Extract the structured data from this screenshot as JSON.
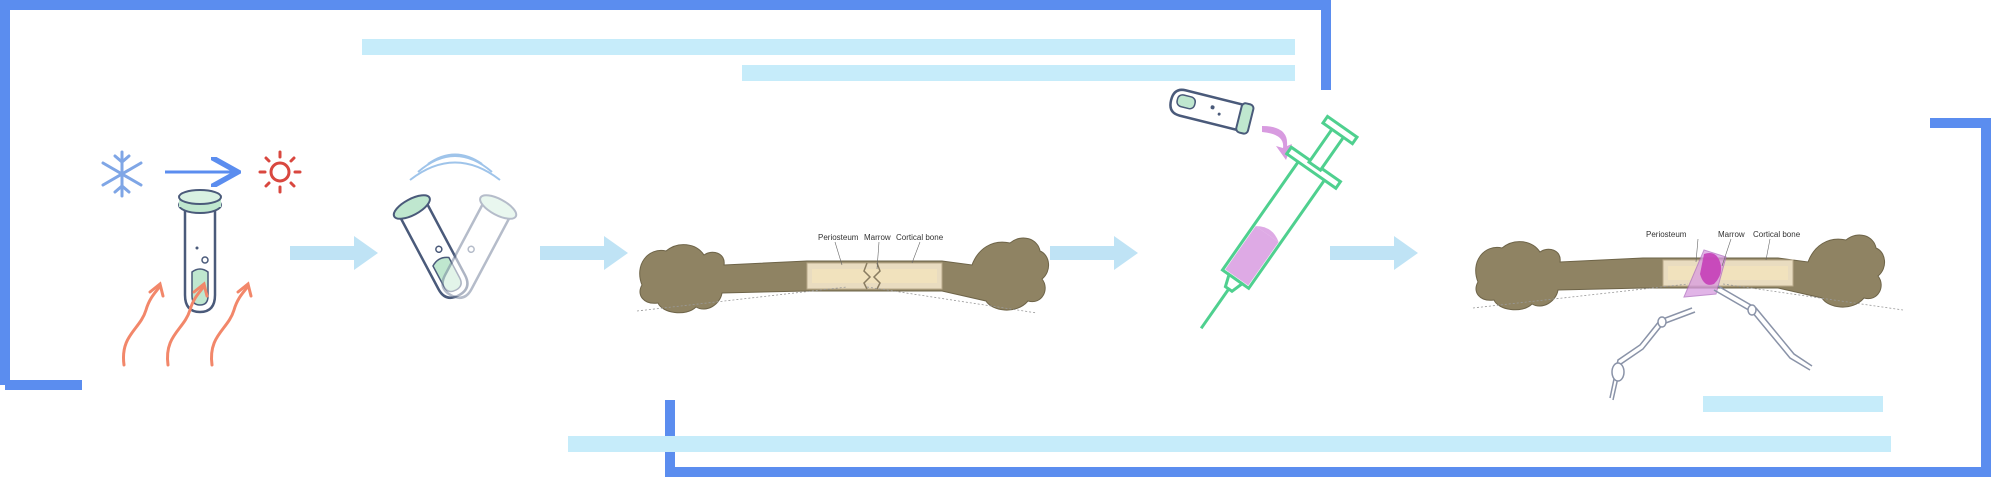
{
  "colors": {
    "frame_blue": "#5b8def",
    "placeholder_bar": "#c6ecfa",
    "flow_arrow": "#bfe3f5",
    "tube_green": "#bfe7cf",
    "tube_outline": "#4a5a7a",
    "heat_orange": "#f2876a",
    "cold_blue": "#7fa6e6",
    "sun_red": "#d9473f",
    "syringe_green": "#4fd08f",
    "gel_pink": "#d89be0",
    "bone_fill": "#8f8363",
    "marrow_fill": "#f1e2bd",
    "injection_magenta": "#c53fb8"
  },
  "icons": {
    "cold": "snowflake-icon",
    "heat": "sun-icon",
    "transition": "arrow-right-icon",
    "mixing": "sound-wave-icon"
  },
  "steps": [
    {
      "id": "thermal-gelation",
      "icon": "test-tube-with-heat-icon"
    },
    {
      "id": "mixing",
      "icon": "two-tubes-shaking-icon"
    },
    {
      "id": "bone-defect",
      "icon": "bone-with-gap-icon"
    },
    {
      "id": "loading-syringe",
      "icon": "syringe-icon"
    },
    {
      "id": "injection",
      "icon": "bone-with-injected-gel-icon"
    }
  ],
  "bone_left": {
    "periosteum_label": "Periosteum",
    "marrow_label": "Marrow",
    "cortical_label": "Cortical bone"
  },
  "bone_right": {
    "periosteum_label": "Periosteum",
    "marrow_label": "Marrow",
    "cortical_label": "Cortical bone"
  }
}
